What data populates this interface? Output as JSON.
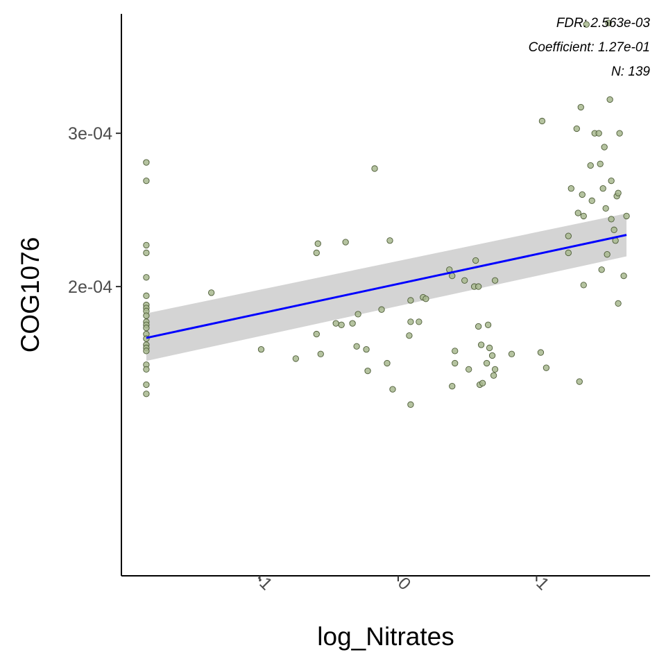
{
  "chart_data": {
    "type": "scatter",
    "title": "",
    "xlabel": "log_Nitrates",
    "ylabel": "COG1076",
    "xlim": [
      -2.0,
      1.82
    ],
    "ylim": [
      1.13e-05,
      0.0003779
    ],
    "x_ticks": [
      {
        "value": -1,
        "label": "-1"
      },
      {
        "value": 0,
        "label": "0"
      },
      {
        "value": 1,
        "label": "1"
      }
    ],
    "y_ticks": [
      {
        "value": 0.0002,
        "label": "2e-04"
      },
      {
        "value": 0.0003,
        "label": "3e-04"
      }
    ],
    "annotations": [
      "FDR: 2.563e-03",
      "Coefficient: 1.27e-01",
      "N: 139"
    ],
    "grid": false,
    "colors": {
      "point_fill": "#a8b98f",
      "point_stroke": "#4b5a35",
      "fit_line": "#0000ff",
      "confidence_band": "#d4d4d4",
      "axis": "#000000",
      "tick_label": "#4d4d4d"
    },
    "fit": {
      "x": [
        -1.82,
        1.65
      ],
      "y": [
        0.0001665,
        0.0002337
      ],
      "ci_lower": [
        0.0001515,
        0.0002197
      ],
      "ci_upper": [
        0.0001825,
        0.0002477
      ]
    },
    "points": [
      {
        "x": -1.82,
        "y": 0.000281
      },
      {
        "x": -1.82,
        "y": 0.000269
      },
      {
        "x": -1.82,
        "y": 0.000227
      },
      {
        "x": -1.82,
        "y": 0.000222
      },
      {
        "x": -1.82,
        "y": 0.000206
      },
      {
        "x": -1.82,
        "y": 0.000194
      },
      {
        "x": -1.82,
        "y": 0.000188
      },
      {
        "x": -1.82,
        "y": 0.000186
      },
      {
        "x": -1.82,
        "y": 0.000184
      },
      {
        "x": -1.82,
        "y": 0.000181
      },
      {
        "x": -1.82,
        "y": 0.000177
      },
      {
        "x": -1.82,
        "y": 0.000175
      },
      {
        "x": -1.82,
        "y": 0.000173
      },
      {
        "x": -1.82,
        "y": 0.000169
      },
      {
        "x": -1.82,
        "y": 0.000166
      },
      {
        "x": -1.82,
        "y": 0.000162
      },
      {
        "x": -1.82,
        "y": 0.00016
      },
      {
        "x": -1.82,
        "y": 0.000158
      },
      {
        "x": -1.82,
        "y": 0.000149
      },
      {
        "x": -1.82,
        "y": 0.000146
      },
      {
        "x": -1.82,
        "y": 0.000136
      },
      {
        "x": -1.82,
        "y": 0.00013
      },
      {
        "x": -1.35,
        "y": 0.000196
      },
      {
        "x": -0.99,
        "y": 0.000159
      },
      {
        "x": -0.74,
        "y": 0.000153
      },
      {
        "x": -0.58,
        "y": 0.000228
      },
      {
        "x": -0.59,
        "y": 0.000222
      },
      {
        "x": -0.59,
        "y": 0.000169
      },
      {
        "x": -0.56,
        "y": 0.000156
      },
      {
        "x": -0.45,
        "y": 0.000176
      },
      {
        "x": -0.41,
        "y": 0.000175
      },
      {
        "x": -0.38,
        "y": 0.000229
      },
      {
        "x": -0.33,
        "y": 0.000176
      },
      {
        "x": -0.3,
        "y": 0.000161
      },
      {
        "x": -0.29,
        "y": 0.000182
      },
      {
        "x": -0.23,
        "y": 0.000159
      },
      {
        "x": -0.22,
        "y": 0.000145
      },
      {
        "x": -0.17,
        "y": 0.000277
      },
      {
        "x": -0.12,
        "y": 0.000185
      },
      {
        "x": -0.08,
        "y": 0.00015
      },
      {
        "x": -0.06,
        "y": 0.00023
      },
      {
        "x": -0.04,
        "y": 0.000133
      },
      {
        "x": 0.09,
        "y": 0.000191
      },
      {
        "x": 0.09,
        "y": 0.000177
      },
      {
        "x": 0.08,
        "y": 0.000168
      },
      {
        "x": 0.09,
        "y": 0.000123
      },
      {
        "x": 0.15,
        "y": 0.000177
      },
      {
        "x": 0.18,
        "y": 0.000193
      },
      {
        "x": 0.2,
        "y": 0.000192
      },
      {
        "x": 0.37,
        "y": 0.000211
      },
      {
        "x": 0.39,
        "y": 0.000207
      },
      {
        "x": 0.41,
        "y": 0.000158
      },
      {
        "x": 0.41,
        "y": 0.00015
      },
      {
        "x": 0.39,
        "y": 0.000135
      },
      {
        "x": 0.48,
        "y": 0.000204
      },
      {
        "x": 0.51,
        "y": 0.000146
      },
      {
        "x": 0.55,
        "y": 0.0002
      },
      {
        "x": 0.56,
        "y": 0.000217
      },
      {
        "x": 0.58,
        "y": 0.0002
      },
      {
        "x": 0.58,
        "y": 0.000174
      },
      {
        "x": 0.59,
        "y": 0.000136
      },
      {
        "x": 0.6,
        "y": 0.000162
      },
      {
        "x": 0.61,
        "y": 0.000137
      },
      {
        "x": 0.64,
        "y": 0.00015
      },
      {
        "x": 0.65,
        "y": 0.000175
      },
      {
        "x": 0.66,
        "y": 0.00016
      },
      {
        "x": 0.68,
        "y": 0.000155
      },
      {
        "x": 0.69,
        "y": 0.000142
      },
      {
        "x": 0.7,
        "y": 0.000146
      },
      {
        "x": 0.7,
        "y": 0.000204
      },
      {
        "x": 0.82,
        "y": 0.000156
      },
      {
        "x": 1.03,
        "y": 0.000157
      },
      {
        "x": 1.04,
        "y": 0.000308
      },
      {
        "x": 1.07,
        "y": 0.000147
      },
      {
        "x": 1.23,
        "y": 0.000233
      },
      {
        "x": 1.23,
        "y": 0.000222
      },
      {
        "x": 1.25,
        "y": 0.000264
      },
      {
        "x": 1.29,
        "y": 0.000303
      },
      {
        "x": 1.3,
        "y": 0.000248
      },
      {
        "x": 1.31,
        "y": 0.000138
      },
      {
        "x": 1.32,
        "y": 0.000317
      },
      {
        "x": 1.33,
        "y": 0.00026
      },
      {
        "x": 1.34,
        "y": 0.000246
      },
      {
        "x": 1.34,
        "y": 0.000201
      },
      {
        "x": 1.36,
        "y": 0.000371
      },
      {
        "x": 1.39,
        "y": 0.000279
      },
      {
        "x": 1.4,
        "y": 0.000256
      },
      {
        "x": 1.42,
        "y": 0.0003
      },
      {
        "x": 1.45,
        "y": 0.0003
      },
      {
        "x": 1.46,
        "y": 0.00028
      },
      {
        "x": 1.47,
        "y": 0.000211
      },
      {
        "x": 1.48,
        "y": 0.000264
      },
      {
        "x": 1.49,
        "y": 0.000291
      },
      {
        "x": 1.5,
        "y": 0.000251
      },
      {
        "x": 1.51,
        "y": 0.000221
      },
      {
        "x": 1.52,
        "y": 0.000372
      },
      {
        "x": 1.53,
        "y": 0.000322
      },
      {
        "x": 1.54,
        "y": 0.000269
      },
      {
        "x": 1.54,
        "y": 0.000244
      },
      {
        "x": 1.56,
        "y": 0.000237
      },
      {
        "x": 1.57,
        "y": 0.00023
      },
      {
        "x": 1.58,
        "y": 0.000259
      },
      {
        "x": 1.59,
        "y": 0.000261
      },
      {
        "x": 1.59,
        "y": 0.000189
      },
      {
        "x": 1.6,
        "y": 0.0003
      },
      {
        "x": 1.63,
        "y": 0.000207
      },
      {
        "x": 1.65,
        "y": 0.000246
      }
    ]
  }
}
